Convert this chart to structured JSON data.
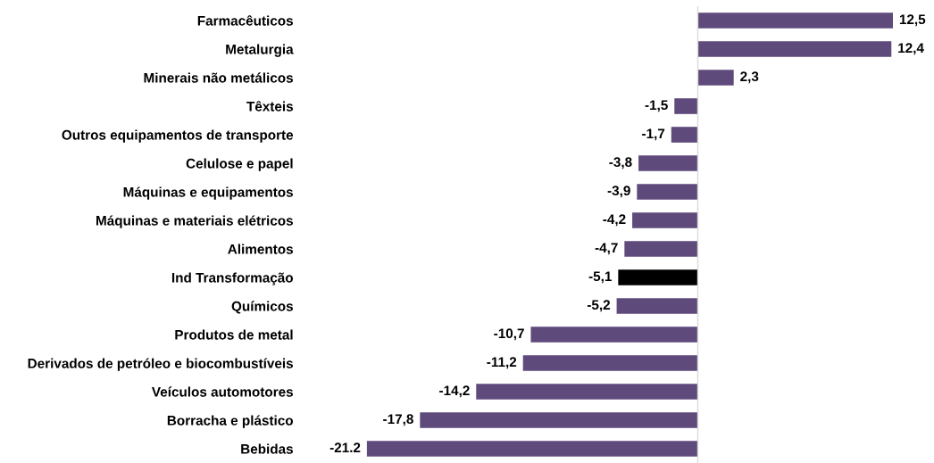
{
  "chart_data": {
    "type": "bar",
    "orientation": "horizontal",
    "data_labels": true,
    "categories": [
      "Farmacêuticos",
      "Metalurgia",
      "Minerais não metálicos",
      "Têxteis",
      "Outros equipamentos de transporte",
      "Celulose e papel",
      "Máquinas e equipamentos",
      "Máquinas e materiais elétricos",
      "Alimentos",
      "Ind Transformação",
      "Químicos",
      "Produtos de metal",
      "Derivados de petróleo e biocombustíveis",
      "Veículos automotores",
      "Borracha e plástico",
      "Bebidas"
    ],
    "values": [
      12.5,
      12.4,
      2.3,
      -1.5,
      -1.7,
      -3.8,
      -3.9,
      -4.2,
      -4.7,
      -5.1,
      -5.2,
      -10.7,
      -11.2,
      -14.2,
      -17.8,
      -21.2
    ],
    "value_labels": [
      "12,5",
      "12,4",
      "2,3",
      "-1,5",
      "-1,7",
      "-3,8",
      "-3,9",
      "-4,2",
      "-4,7",
      "-5,1",
      "-5,2",
      "-10,7",
      "-11,2",
      "-14,2",
      "-17,8",
      "-21.2"
    ],
    "colors": [
      "#5f4a7c",
      "#5f4a7c",
      "#5f4a7c",
      "#5f4a7c",
      "#5f4a7c",
      "#5f4a7c",
      "#5f4a7c",
      "#5f4a7c",
      "#5f4a7c",
      "#000000",
      "#5f4a7c",
      "#5f4a7c",
      "#5f4a7c",
      "#5f4a7c",
      "#5f4a7c",
      "#5f4a7c"
    ],
    "grid": false,
    "legend": false
  }
}
